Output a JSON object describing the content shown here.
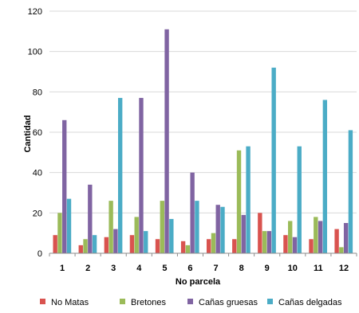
{
  "chart_data": {
    "type": "bar",
    "xlabel": "No parcela",
    "ylabel": "Cantidad",
    "ylim": [
      0,
      120
    ],
    "yticks": [
      0,
      20,
      40,
      60,
      80,
      100,
      120
    ],
    "grid": true,
    "legend_position": "bottom",
    "categories": [
      "1",
      "2",
      "3",
      "4",
      "5",
      "6",
      "7",
      "8",
      "9",
      "10",
      "11",
      "12"
    ],
    "series": [
      {
        "name": "No Matas",
        "color": "#d9534f",
        "values": [
          9,
          4,
          8,
          9,
          7,
          6,
          7,
          7,
          20,
          9,
          7,
          12
        ]
      },
      {
        "name": "Bretones",
        "color": "#9bbb59",
        "values": [
          20,
          7,
          26,
          18,
          26,
          4,
          10,
          51,
          11,
          16,
          18,
          3
        ]
      },
      {
        "name": "Cañas gruesas",
        "color": "#8064a2",
        "values": [
          66,
          34,
          12,
          77,
          111,
          40,
          24,
          19,
          11,
          8,
          16,
          15
        ]
      },
      {
        "name": "Cañas delgadas",
        "color": "#4bacc6",
        "values": [
          27,
          9,
          77,
          11,
          17,
          26,
          23,
          53,
          92,
          53,
          76,
          61
        ]
      }
    ]
  }
}
